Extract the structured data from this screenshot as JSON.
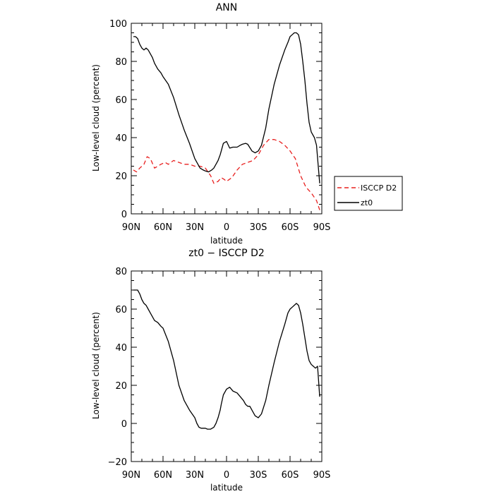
{
  "chart_data": [
    {
      "type": "line",
      "title": "ANN",
      "xlabel": "latitude",
      "ylabel": "Low-level cloud (percent)",
      "xlim": [
        90,
        -90
      ],
      "ylim": [
        0,
        100
      ],
      "x_ticks": [
        90,
        60,
        30,
        0,
        -30,
        -60,
        -90
      ],
      "x_tick_labels": [
        "90N",
        "60N",
        "30N",
        "0",
        "30S",
        "60S",
        "90S"
      ],
      "y_ticks": [
        0,
        20,
        40,
        60,
        80,
        100
      ],
      "y_tick_labels": [
        "0",
        "20",
        "40",
        "60",
        "80",
        "100"
      ],
      "legend_position": "right",
      "series": [
        {
          "name": "ISCCP D2",
          "color": "#e8201f",
          "dash": "dashed",
          "x": [
            88,
            85,
            82,
            78,
            75,
            72,
            68,
            65,
            62,
            58,
            55,
            50,
            45,
            40,
            35,
            30,
            25,
            20,
            15,
            12,
            8,
            5,
            2,
            0,
            -5,
            -10,
            -15,
            -20,
            -25,
            -30,
            -35,
            -40,
            -45,
            -50,
            -55,
            -60,
            -65,
            -70,
            -75,
            -80,
            -85,
            -88
          ],
          "y": [
            23,
            22,
            24,
            26,
            30,
            29,
            24,
            25,
            26,
            27,
            26,
            28,
            27,
            26,
            26,
            25,
            25,
            24,
            20,
            16,
            17,
            19,
            18,
            17,
            19,
            23,
            26,
            27,
            28,
            31,
            36,
            39,
            39,
            38,
            36,
            33,
            29,
            20,
            14,
            11,
            7,
            2
          ]
        },
        {
          "name": "zt0",
          "color": "#000000",
          "dash": "solid",
          "x": [
            88,
            86,
            84,
            82,
            80,
            78,
            76,
            74,
            72,
            70,
            68,
            65,
            62,
            60,
            55,
            50,
            45,
            40,
            35,
            30,
            27,
            25,
            22,
            20,
            17,
            14,
            12,
            10,
            8,
            6,
            5,
            3,
            0,
            -3,
            -6,
            -10,
            -13,
            -15,
            -18,
            -20,
            -24,
            -27,
            -30,
            -33,
            -37,
            -40,
            -45,
            -50,
            -55,
            -58,
            -60,
            -62,
            -64,
            -66,
            -68,
            -70,
            -72,
            -74,
            -76,
            -78,
            -80,
            -83,
            -85,
            -88
          ],
          "y": [
            93,
            93,
            92,
            89,
            87,
            86,
            87,
            86,
            84,
            82,
            79,
            76,
            74,
            72,
            68,
            61,
            52,
            44,
            37,
            29,
            26,
            24,
            23,
            22.5,
            22,
            23,
            24,
            26,
            28,
            31,
            33,
            37,
            38,
            34.5,
            35,
            35,
            36,
            36.5,
            37,
            36.5,
            33,
            32,
            33,
            36,
            45,
            55,
            68,
            78,
            86,
            90,
            93,
            94,
            95,
            95,
            94,
            89,
            80,
            70,
            58,
            48,
            43,
            40,
            36,
            16
          ]
        }
      ]
    },
    {
      "type": "line",
      "title": "zt0 − ISCCP D2",
      "xlabel": "latitude",
      "ylabel": "Low-level cloud (percent)",
      "xlim": [
        90,
        -90
      ],
      "ylim": [
        -20,
        80
      ],
      "x_ticks": [
        90,
        60,
        30,
        0,
        -30,
        -60,
        -90
      ],
      "x_tick_labels": [
        "90N",
        "60N",
        "30N",
        "0",
        "30S",
        "60S",
        "90S"
      ],
      "y_ticks": [
        -20,
        0,
        20,
        40,
        60,
        80
      ],
      "y_tick_labels": [
        "−20",
        "0",
        "20",
        "40",
        "60",
        "80"
      ],
      "series": [
        {
          "color": "#000000",
          "dash": "solid",
          "x": [
            88,
            86,
            84,
            82,
            80,
            78,
            76,
            74,
            72,
            70,
            68,
            65,
            62,
            60,
            55,
            50,
            45,
            40,
            35,
            30,
            28,
            26,
            24,
            22,
            20,
            18,
            15,
            12,
            10,
            8,
            6,
            5,
            3,
            0,
            -3,
            -6,
            -10,
            -13,
            -16,
            -18,
            -20,
            -22,
            -25,
            -27,
            -30,
            -33,
            -37,
            -40,
            -45,
            -50,
            -55,
            -58,
            -60,
            -62,
            -64,
            -66,
            -68,
            -70,
            -72,
            -74,
            -76,
            -78,
            -80,
            -82,
            -84,
            -86,
            -88
          ],
          "y": [
            70,
            70,
            70,
            68,
            65,
            63,
            62,
            60,
            58,
            56,
            54,
            53,
            51,
            50,
            43,
            33,
            20,
            12,
            7,
            3,
            0,
            -2,
            -2.5,
            -2.5,
            -2.5,
            -3,
            -3,
            -2,
            0,
            3,
            7,
            10,
            15,
            18,
            19,
            17,
            16,
            14,
            12,
            10,
            9,
            9,
            6,
            4,
            3,
            5,
            12,
            20,
            32,
            43,
            52,
            58,
            60,
            61,
            62,
            63,
            62,
            58,
            52,
            45,
            38,
            33,
            31,
            30,
            29,
            30,
            14
          ]
        }
      ]
    }
  ]
}
